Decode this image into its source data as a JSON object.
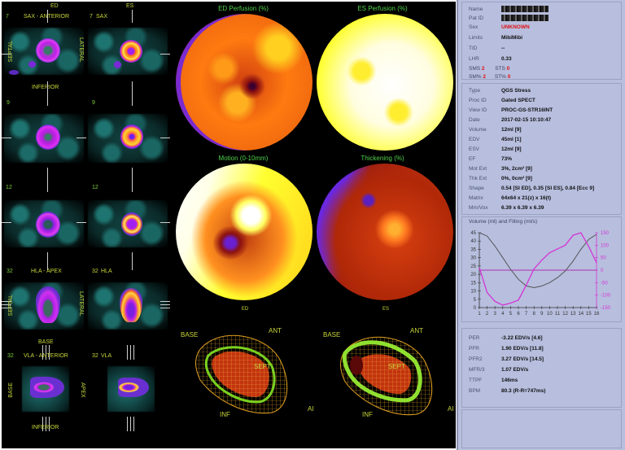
{
  "slices": {
    "col_headers": [
      "ED",
      "ES"
    ],
    "rows": [
      {
        "num_ed": "7",
        "title_ed": "SAX - ANTERIOR",
        "num_es": "7",
        "title_es": "SAX",
        "left_side": "SEPTAL",
        "right_side": "LATERAL",
        "bottom": "INFERIOR"
      },
      {
        "num_ed": "9",
        "title_ed": "",
        "num_es": "9",
        "title_es": ""
      },
      {
        "num_ed": "12",
        "title_ed": "",
        "num_es": "12",
        "title_es": ""
      },
      {
        "num_ed": "32",
        "title_ed": "HLA - APEX",
        "num_es": "32",
        "title_es": "HLA",
        "left_side": "SEPTAL",
        "right_side": "LATERAL",
        "bottom": "BASE"
      },
      {
        "num_ed": "32",
        "title_ed": "VLA - ANTERIOR",
        "num_es": "32",
        "title_es": "VLA",
        "left_side": "BASE",
        "right_side": "APEX",
        "bottom": "INFERIOR"
      }
    ]
  },
  "polar_maps": [
    {
      "title": "ED Perfusion (%)",
      "sub": ""
    },
    {
      "title": "ES Perfusion (%)",
      "sub": ""
    },
    {
      "title": "Motion (0-10mm)",
      "sub": "ED"
    },
    {
      "title": "Thickening (%)",
      "sub": "ES"
    }
  ],
  "wireframes": [
    {
      "base": "BASE",
      "ant": "ANT",
      "inf": "INF",
      "sept": "SEPT",
      "al": "AI"
    },
    {
      "base": "BASE",
      "ant": "ANT",
      "inf": "INF",
      "sept": "SEPT",
      "al": "AI"
    }
  ],
  "patient": {
    "name_label": "Name",
    "patid_label": "Pat ID",
    "sex_label": "Sex",
    "sex": "UNKNOWN",
    "limits_label": "Limits",
    "limits": "MibiMibi",
    "tid_label": "TID",
    "tid": "--",
    "lhr_label": "LHR",
    "lhr": "0.33",
    "sms_label": "SMS",
    "sms": "2",
    "sts_label": "STS",
    "sts": "0",
    "smp_label": "SM%",
    "smp": "2",
    "stp_label": "ST%",
    "stp": "0"
  },
  "study": [
    {
      "k": "Type",
      "v": "QGS Stress"
    },
    {
      "k": "Proc ID",
      "v": "Gated SPECT"
    },
    {
      "k": "View ID",
      "v": "PROC-GS-STR16INT"
    },
    {
      "k": "Date",
      "v": "2017-02-15 10:10:47"
    },
    {
      "k": "Volume",
      "v": "12ml [9]"
    },
    {
      "k": "EDV",
      "v": "45ml [1]"
    },
    {
      "k": "ESV",
      "v": "12ml [9]"
    },
    {
      "k": "EF",
      "v": "73%"
    },
    {
      "k": "Mot Ext",
      "v": "3%, 2cm² [9]"
    },
    {
      "k": "Thk Ext",
      "v": "0%, 0cm² [9]"
    },
    {
      "k": "Shape",
      "v": "0.54 [SI ED],  0.35 [SI ES],  0.84 [Ecc 9]"
    },
    {
      "k": "Matrix",
      "v": "64x64 x 21(z) x 16(t)"
    },
    {
      "k": "Mm/Vox",
      "v": "6.39 x 6.39 x 6.39"
    }
  ],
  "filling": [
    {
      "k": "PER",
      "v": "-3.22 EDV/s [4.6]"
    },
    {
      "k": "PFR",
      "v": "1.90 EDV/s [11.8]"
    },
    {
      "k": "PFR2",
      "v": "3.27 EDV/s [14.5]"
    },
    {
      "k": "MFR/3",
      "v": "1.07 EDV/s"
    },
    {
      "k": "TTPF",
      "v": "146ms"
    },
    {
      "k": "BPM",
      "v": "80.3 (R-R=747ms)"
    }
  ],
  "chart_data": {
    "type": "line",
    "title": "Volume (ml) and Filling (ml/s)",
    "x": [
      1,
      2,
      3,
      4,
      5,
      6,
      7,
      8,
      9,
      10,
      11,
      12,
      13,
      14,
      15,
      16
    ],
    "xlabel": "",
    "ylabel": "Volume (ml)",
    "ylim": [
      0,
      45
    ],
    "y_ticks": [
      0,
      5,
      10,
      15,
      20,
      25,
      30,
      35,
      40,
      45
    ],
    "y2label": "Filling (ml/s)",
    "y2lim": [
      -150,
      150
    ],
    "y2_ticks": [
      "150",
      "100",
      "50",
      "0",
      "-50",
      "-100",
      "-150"
    ],
    "series": [
      {
        "name": "Volume",
        "axis": "left",
        "color": "#555555",
        "values": [
          45,
          43,
          37,
          30,
          23,
          17,
          13,
          12,
          13,
          15,
          18,
          22,
          28,
          35,
          41,
          44
        ]
      },
      {
        "name": "Filling",
        "axis": "right",
        "color": "#d535d5",
        "values": [
          10,
          -90,
          -125,
          -140,
          -132,
          -120,
          -60,
          5,
          40,
          70,
          85,
          100,
          140,
          150,
          95,
          30
        ]
      }
    ],
    "zero_line_color": "#b030b0"
  },
  "colors": {
    "panel_bg": "#b7bede",
    "viewer_bg": "#000000",
    "label_yellow": "#c8d63a",
    "label_green": "#4fd14a",
    "alert_red": "#e01010",
    "filling_magenta": "#d535d5"
  }
}
